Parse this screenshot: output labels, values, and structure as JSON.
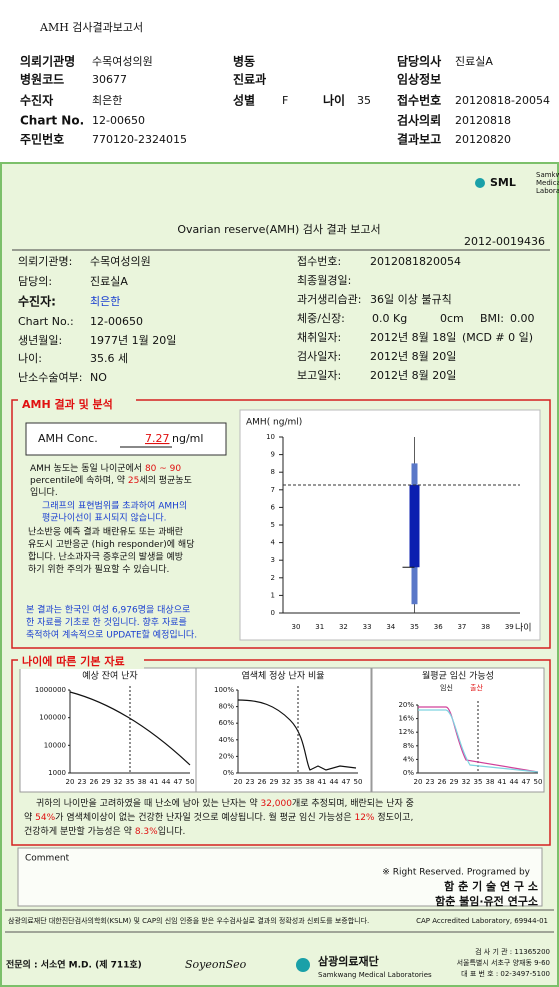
{
  "header": {
    "title": "AMH 검사결과보고서",
    "fields": [
      {
        "label": "의뢰기관명",
        "value": "수목여성의원"
      },
      {
        "label": "병동"
      },
      {
        "label": "담당의사",
        "value": "진료실A"
      },
      {
        "label": "병원코드",
        "value": "30677"
      },
      {
        "label": "진료과"
      },
      {
        "label": "임상정보"
      },
      {
        "label": "수진자",
        "value": "최은한"
      },
      {
        "label": "성별",
        "value": "F"
      },
      {
        "label": "나이",
        "value": "35"
      },
      {
        "label": "접수번호",
        "value": "20120818-20054"
      },
      {
        "label": "Chart No.",
        "value": "12-00650"
      },
      {
        "label": "검사의뢰",
        "value": "20120818"
      },
      {
        "label": "주민번호",
        "value": "770120-2324015"
      },
      {
        "label": "결과보고",
        "value": "20120820"
      }
    ]
  },
  "report": {
    "logo": "SML",
    "logo_sub": [
      "Samkwang",
      "Medical",
      "Laboratory"
    ],
    "title": "Ovarian reserve(AMH) 검사 결과 보고서",
    "number": "2012-0019436",
    "info_left": [
      {
        "label": "의뢰기관명:",
        "value": "수목여성의원"
      },
      {
        "label": "담당의:",
        "value": "진료실A"
      },
      {
        "label": "수진자:",
        "value": "최은한"
      },
      {
        "label": "Chart No.:",
        "value": "12-00650"
      },
      {
        "label": "생년월일:",
        "value": "1977년 1월 20일"
      },
      {
        "label": "나이:",
        "value": "35.6 세"
      },
      {
        "label": "난소수술여부:",
        "value": "NO"
      }
    ],
    "info_right": [
      {
        "label": "접수번호:",
        "parts": [
          "2012081820054"
        ]
      },
      {
        "label": "최종월경일:"
      },
      {
        "label": "과거생리습관:",
        "parts": [
          "36일 이상 불규칙"
        ]
      },
      {
        "label": "체중/신장:",
        "parts": [
          "0.0 Kg",
          "0cm",
          "BMI:",
          "0.00"
        ]
      },
      {
        "label": "채취일자:",
        "parts": [
          "2012년 8월 18일",
          "(MCD #  0 일)"
        ]
      },
      {
        "label": "검사일자:",
        "parts": [
          "2012년 8월 20일"
        ]
      },
      {
        "label": "보고일자:",
        "parts": [
          "2012년 8월 20일"
        ]
      }
    ]
  },
  "amh": {
    "section_title": "AMH 결과 및 분석",
    "conc_label": "AMH Conc.",
    "conc_unit": "ng/ml",
    "notes": [
      [
        "AMH 농도는 동일 나이군에서 ",
        "80 ~ 90"
      ],
      [
        "percentile에 속하며, 약 ",
        "25",
        "세의 평균농도"
      ],
      [
        "입니다."
      ]
    ],
    "notes_blue": [
      "그래프의 표현범위를 초과하여 AMH의",
      "평균나이선이 표시되지 않습니다."
    ],
    "notes_black": [
      "난소반응 예측 결과 배란유도 또는 과배란",
      "유도시 고반응군 (high responder)에 해당",
      "합니다. 난소과자극 증후군의 발생을 예방",
      "하기 위한 주의가 필요할 수 있습니다."
    ],
    "notes_footer": [
      "본 결과는 한국인 여성 6,976명을 대상으로",
      "한 자료를 기초로 한 것입니다. 향후 자료를",
      "축적하여 계속적으로 UPDATE할 예정입니다."
    ],
    "chart": {
      "type": "box",
      "y_label": "AMH( ng/ml)",
      "x_label": "나이",
      "categories": [
        30,
        31,
        32,
        33,
        34,
        35,
        36,
        37,
        38,
        39
      ],
      "ylim": [
        0,
        10
      ],
      "yticks": [
        0,
        1,
        2,
        3,
        4,
        5,
        6,
        7,
        8,
        9,
        10
      ],
      "at_category": 5,
      "range": [
        0.5,
        8.5
      ],
      "box": [
        2.6,
        7.27
      ],
      "value": 7.27,
      "range_color": "#5a78c8",
      "box_color": "#0b1fb0"
    }
  },
  "age": {
    "section_title": "나이에 따른 기본 자료",
    "xticks": [
      20,
      23,
      26,
      29,
      32,
      35,
      38,
      41,
      44,
      47,
      50
    ],
    "marker": 35,
    "charts": [
      {
        "title": "예상 잔여 난자",
        "log": true,
        "ylim": [
          1000,
          1000000
        ],
        "yticks": [
          1000000,
          100000,
          10000,
          1000
        ]
      },
      {
        "title": "염색체 정상 난자 비율",
        "ylim": [
          0,
          100
        ],
        "yticks": [
          {
            "value": 100,
            "label": "100%"
          },
          {
            "value": 80,
            "label": "80%"
          },
          {
            "value": 60,
            "label": "60%"
          },
          {
            "value": 40,
            "label": "40%"
          },
          {
            "value": 20,
            "label": "20%"
          },
          {
            "value": 0,
            "label": "0%"
          }
        ]
      },
      {
        "title": "월평균 임신 가능성",
        "legend": [
          "임신",
          "출산"
        ],
        "ylim": [
          0,
          20
        ],
        "yticks": [
          {
            "value": 20,
            "label": "20%"
          },
          {
            "value": 16,
            "label": "16%"
          },
          {
            "value": 12,
            "label": "12%"
          },
          {
            "value": 8,
            "label": "8%"
          },
          {
            "value": 4,
            "label": "4%"
          },
          {
            "value": 0,
            "label": "0%"
          }
        ]
      }
    ],
    "summary": [
      [
        "귀하의 나이만을 고려하였을 때 난소에 남아 있는 난자는 약 ",
        "32,000",
        "개로 추정되며, 배란되는 난자 중"
      ],
      [
        "약 ",
        "54%",
        "가 염색체이상이 없는 건강한 난자일 것으로 예상됩니다. 월 평균 임신 가능성은 ",
        "12%",
        " 정도이고,"
      ],
      [
        "건강하게 분만할 가능성은 약 ",
        "8.3%",
        "입니다."
      ]
    ]
  },
  "comment": {
    "label": "Comment"
  },
  "credits": {
    "rights": "※ Right Reserved. Programed by",
    "lab1": "함 춘 기 술 연 구 소",
    "lab2": "함춘 불임·유전 연구소"
  },
  "footer": {
    "accreditation": "삼광의료재단 대한진단검사의학회(KSLM) 및 CAP의 신임 인증을 받은 우수검사실로 결과의 정확성과 신뢰도를 보증합니다.",
    "cap": "CAP Accredited Laboratory,  69944-01",
    "doctor": "전문의 : 서소연 M.D. (제 711호)",
    "signature": "SoyeonSeo",
    "org": "삼광의료재단",
    "org_en": "Samkwang Medical Laboratories",
    "contact": [
      "검 사 기 관 : 11365200",
      "서울특별시 서초구 양재동 9-60",
      "대 표 번 호 : 02-3497-5100"
    ]
  }
}
